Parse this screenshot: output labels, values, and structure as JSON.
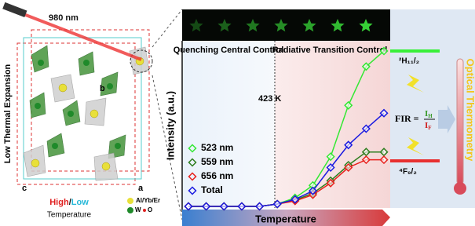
{
  "chart_data": {
    "type": "line",
    "x_label": "Temperature",
    "y_label": "Intensity (a.u.)",
    "categories": [
      null,
      null,
      null,
      null,
      null,
      null,
      null,
      null,
      null,
      null,
      null,
      null
    ],
    "ylim": [
      0,
      100
    ],
    "series": [
      {
        "name": "523 nm",
        "color": "#33e833",
        "values": [
          0,
          0,
          0,
          0,
          0,
          1.5,
          5.5,
          13.5,
          32,
          65,
          90,
          100
        ]
      },
      {
        "name": "559 nm",
        "color": "#2e7d1e",
        "values": [
          0,
          0,
          0,
          0,
          0,
          1.5,
          4,
          8.5,
          16.5,
          26.5,
          35,
          35
        ]
      },
      {
        "name": "656 nm",
        "color": "#e8201c",
        "values": [
          0,
          0,
          0,
          0,
          0,
          1.5,
          3.5,
          7.5,
          15,
          25,
          30,
          30
        ]
      },
      {
        "name": "Total",
        "color": "#1a1ae0",
        "values": [
          0,
          0,
          0,
          0,
          0,
          1.5,
          4.5,
          10,
          25,
          39.5,
          50,
          60
        ]
      }
    ],
    "regions": [
      "Quenching Central Control",
      "Radiative Transition Control"
    ],
    "threshold_label": "423 K",
    "level_high": "²H₁₁/₂",
    "level_low": "⁴F₉/₂",
    "fir": {
      "lhs": "FIR =",
      "num": "I",
      "num_sub": "H",
      "den": "I",
      "den_sub": "F"
    },
    "right_title": "Optical Thermometry",
    "laser": "980 nm",
    "left_title": "Low Thermal Expansion",
    "temp_words": [
      "High",
      "/",
      "Low",
      "Temperature"
    ],
    "atoms": [
      "Al/Yb/Er",
      "W",
      "O"
    ],
    "axes": [
      "a",
      "b",
      "c"
    ]
  }
}
